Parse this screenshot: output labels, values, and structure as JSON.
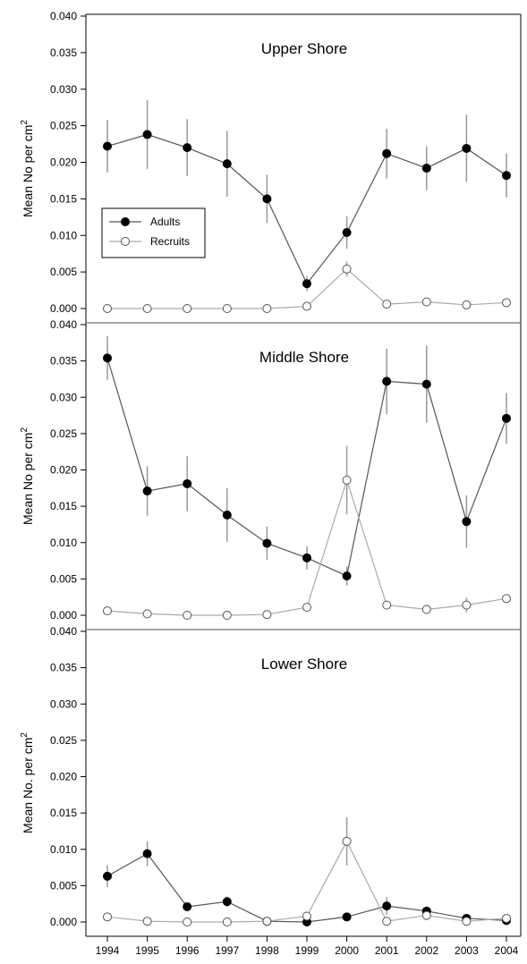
{
  "chart_data": [
    {
      "type": "line",
      "title": "Upper Shore",
      "ylabel": "Mean No per cm",
      "ylabel_sup": "2",
      "xlabel": "",
      "x": [
        "1994",
        "1995",
        "1996",
        "1997",
        "1998",
        "1999",
        "2000",
        "2001",
        "2002",
        "2003",
        "2004"
      ],
      "ylim": [
        0,
        0.04
      ],
      "yticks": [
        "0.000",
        "0.005",
        "0.010",
        "0.015",
        "0.020",
        "0.025",
        "0.030",
        "0.035",
        "0.040"
      ],
      "legend": true,
      "legend_position": "middle-left",
      "series": [
        {
          "name": "Adults",
          "marker": "filled-circle",
          "values": [
            0.0222,
            0.0238,
            0.022,
            0.0198,
            0.015,
            0.0034,
            0.0104,
            0.0212,
            0.0192,
            0.0219,
            0.0182
          ],
          "err": [
            0.0036,
            0.0047,
            0.0039,
            0.0045,
            0.0033,
            0.001,
            0.0022,
            0.0034,
            0.003,
            0.0046,
            0.003
          ]
        },
        {
          "name": "Recruits",
          "marker": "open-circle",
          "values": [
            0.0,
            0.0,
            0.0,
            0.0,
            0.0,
            0.0003,
            0.0054,
            0.0006,
            0.0009,
            0.0005,
            0.0008
          ],
          "err": [
            0,
            0,
            0,
            0,
            0,
            0.0002,
            0.001,
            0.0002,
            0.0003,
            0.0002,
            0.0002
          ]
        }
      ]
    },
    {
      "type": "line",
      "title": "Middle Shore",
      "ylabel": "Mean No per cm",
      "ylabel_sup": "2",
      "xlabel": "",
      "x": [
        "1994",
        "1995",
        "1996",
        "1997",
        "1998",
        "1999",
        "2000",
        "2001",
        "2002",
        "2003",
        "2004"
      ],
      "ylim": [
        0,
        0.04
      ],
      "yticks": [
        "0.000",
        "0.005",
        "0.010",
        "0.015",
        "0.020",
        "0.025",
        "0.030",
        "0.035",
        "0.040"
      ],
      "legend": false,
      "series": [
        {
          "name": "Adults",
          "marker": "filled-circle",
          "values": [
            0.0354,
            0.0171,
            0.0181,
            0.0138,
            0.0099,
            0.0079,
            0.0054,
            0.0322,
            0.0318,
            0.0129,
            0.0271
          ],
          "err": [
            0.003,
            0.0034,
            0.0038,
            0.0037,
            0.0023,
            0.0016,
            0.0013,
            0.0045,
            0.0053,
            0.0036,
            0.0035
          ]
        },
        {
          "name": "Recruits",
          "marker": "open-circle",
          "values": [
            0.0006,
            0.0002,
            0.0,
            0.0,
            0.0001,
            0.0011,
            0.0186,
            0.0014,
            0.0008,
            0.0014,
            0.0023
          ],
          "err": [
            0.0002,
            0.0001,
            0,
            0,
            0.0001,
            0.0003,
            0.0047,
            0.0003,
            0.0002,
            0.001,
            0.0006
          ]
        }
      ]
    },
    {
      "type": "line",
      "title": "Lower Shore",
      "ylabel": "Mean No. per cm",
      "ylabel_sup": "2",
      "xlabel": "",
      "x": [
        "1994",
        "1995",
        "1996",
        "1997",
        "1998",
        "1999",
        "2000",
        "2001",
        "2002",
        "2003",
        "2004"
      ],
      "ylim": [
        0,
        0.04
      ],
      "yticks": [
        "0.000",
        "0.005",
        "0.010",
        "0.015",
        "0.020",
        "0.025",
        "0.030",
        "0.035",
        "0.040"
      ],
      "legend": false,
      "series": [
        {
          "name": "Adults",
          "marker": "filled-circle",
          "values": [
            0.0063,
            0.0094,
            0.0021,
            0.0028,
            0.0001,
            0.0,
            0.0007,
            0.0022,
            0.0015,
            0.0005,
            0.0002
          ],
          "err": [
            0.0015,
            0.0017,
            0.0005,
            0.0007,
            0.0001,
            0,
            0.0003,
            0.0012,
            0.0005,
            0.0002,
            0.0001
          ]
        },
        {
          "name": "Recruits",
          "marker": "open-circle",
          "values": [
            0.0007,
            0.0001,
            0.0,
            0.0,
            0.0001,
            0.0008,
            0.0111,
            0.0001,
            0.0009,
            0.0001,
            0.0005
          ],
          "err": [
            0.0002,
            0.0001,
            0,
            0,
            0.0001,
            0.0003,
            0.0033,
            0.0001,
            0.0003,
            0.0001,
            0.0002
          ]
        }
      ]
    }
  ],
  "colors": {
    "adults": "#000000",
    "recruits_fill": "#ffffff",
    "adults_line": "#555555",
    "recruits_line": "#aaaaaa",
    "error_bar": "#999999",
    "axis": "#000000",
    "panel_divider": "#888888"
  }
}
